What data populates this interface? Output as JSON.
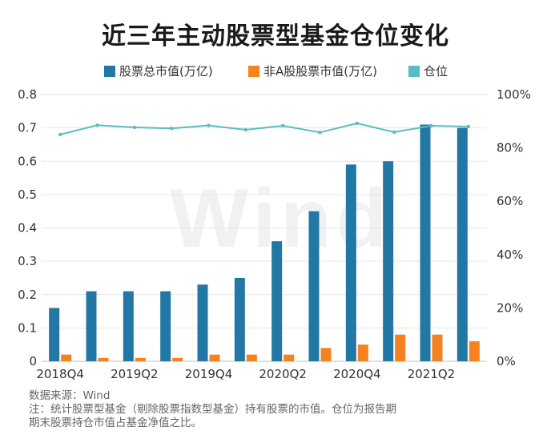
{
  "chart_data": {
    "type": "bar",
    "title": "近三年主动股票型基金仓位变化",
    "categories": [
      "2018Q4",
      "2019Q1",
      "2019Q2",
      "2019Q3",
      "2019Q4",
      "2020Q1",
      "2020Q2",
      "2020Q3",
      "2020Q4",
      "2021Q1",
      "2021Q2",
      "2021Q3"
    ],
    "x_tick_labels": [
      "2018Q4",
      "2019Q2",
      "2019Q4",
      "2020Q2",
      "2020Q4",
      "2021Q2"
    ],
    "series": [
      {
        "name": "股票总市值(万亿)",
        "type": "bar",
        "axis": "left",
        "color": "#2377a4",
        "values": [
          0.16,
          0.21,
          0.21,
          0.21,
          0.23,
          0.25,
          0.36,
          0.45,
          0.59,
          0.6,
          0.71,
          0.7
        ]
      },
      {
        "name": "非A股股票市值(万亿)",
        "type": "bar",
        "axis": "left",
        "color": "#f5821f",
        "values": [
          0.02,
          0.01,
          0.01,
          0.01,
          0.02,
          0.02,
          0.02,
          0.04,
          0.05,
          0.08,
          0.08,
          0.06
        ]
      },
      {
        "name": "仓位",
        "type": "line",
        "axis": "right",
        "color": "#5bbcc4",
        "values": [
          0.85,
          0.885,
          0.877,
          0.873,
          0.884,
          0.868,
          0.883,
          0.858,
          0.892,
          0.859,
          0.883,
          0.88
        ]
      }
    ],
    "ylim_left": [
      0,
      0.8
    ],
    "yticks_left": [
      "0",
      "0.1",
      "0.2",
      "0.3",
      "0.4",
      "0.5",
      "0.6",
      "0.7",
      "0.8"
    ],
    "ylim_right": [
      0,
      1.0
    ],
    "yticks_right": [
      "0%",
      "20%",
      "40%",
      "60%",
      "80%",
      "100%"
    ],
    "grid": true,
    "legend_position": "top-center"
  },
  "watermark": "Wind",
  "source_note": "数据来源：Wind",
  "footnote_line1": "注：统计股票型基金（剔除股票指数型基金）持有股票的市值。仓位为报告期",
  "footnote_line2": "期末股票持仓市值占基金净值之比。"
}
